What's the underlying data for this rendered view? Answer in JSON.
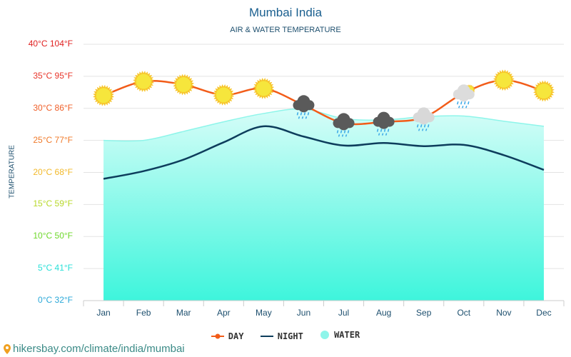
{
  "title": "Mumbai India",
  "subtitle": "AIR & WATER TEMPERATURE",
  "footer": "hikersbay.com/climate/india/mumbai",
  "chart_data": {
    "type": "line",
    "title": "Mumbai India",
    "subtitle": "AIR & WATER TEMPERATURE",
    "xlabel": "",
    "ylabel": "TEMPERATURE",
    "ylim": [
      0,
      40
    ],
    "grid": true,
    "legend": "bottom",
    "categories": [
      "Jan",
      "Feb",
      "Mar",
      "Apr",
      "May",
      "Jun",
      "Jul",
      "Aug",
      "Sep",
      "Oct",
      "Nov",
      "Dec"
    ],
    "yticks": [
      {
        "c": 40,
        "label": "40°C 104°F",
        "color": "#e02020"
      },
      {
        "c": 35,
        "label": "35°C 95°F",
        "color": "#e8352a"
      },
      {
        "c": 30,
        "label": "30°C 86°F",
        "color": "#f0602a"
      },
      {
        "c": 25,
        "label": "25°C 77°F",
        "color": "#f07a2a"
      },
      {
        "c": 20,
        "label": "20°C 68°F",
        "color": "#f2b92a"
      },
      {
        "c": 15,
        "label": "15°C 59°F",
        "color": "#b8d82a"
      },
      {
        "c": 10,
        "label": "10°C 50°F",
        "color": "#6ed82a"
      },
      {
        "c": 5,
        "label": "5°C 41°F",
        "color": "#2ae0d8"
      },
      {
        "c": 0,
        "label": "0°C 32°F",
        "color": "#2aa8d8"
      }
    ],
    "series": [
      {
        "name": "DAY",
        "color": "#f25c19",
        "values": [
          32.0,
          34.2,
          33.7,
          32.1,
          33.1,
          30.5,
          27.7,
          27.9,
          28.6,
          32.4,
          34.4,
          32.7
        ]
      },
      {
        "name": "NIGHT",
        "color": "#0d3d5c",
        "values": [
          19.0,
          20.2,
          22.0,
          24.7,
          27.2,
          25.6,
          24.2,
          24.6,
          24.1,
          24.3,
          22.7,
          20.4
        ]
      },
      {
        "name": "WATER",
        "color": "#8ef5ea",
        "values": [
          25.0,
          25.0,
          26.4,
          27.9,
          29.2,
          29.9,
          28.4,
          28.2,
          28.7,
          28.8,
          28.0,
          27.2
        ]
      }
    ],
    "weather_icons": [
      "sun",
      "sun",
      "sun",
      "sun",
      "sun",
      "rain-cloud",
      "rain-cloud",
      "rain-cloud",
      "light-rain-cloud",
      "partly-cloudy-rain",
      "sun",
      "sun"
    ]
  },
  "legend": {
    "day": "DAY",
    "night": "NIGHT",
    "water": "WATER"
  }
}
